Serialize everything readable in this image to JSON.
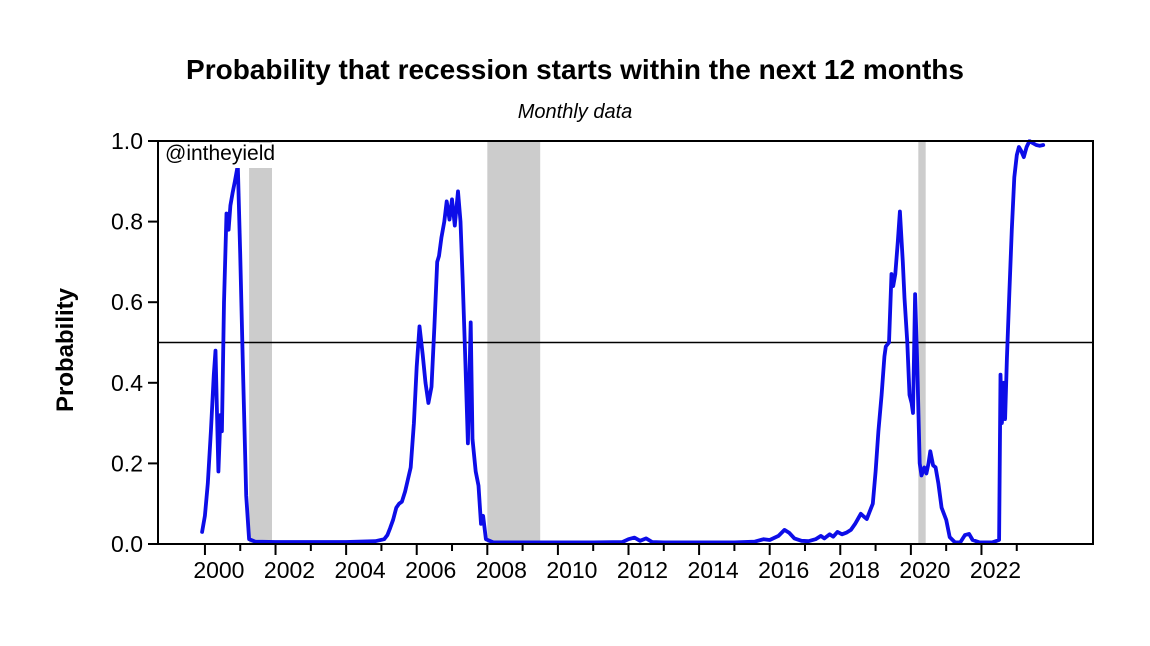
{
  "title": "Probability that recession starts within the next 12 months",
  "subtitle": "Monthly data",
  "watermark": "@intheyield",
  "chart_data": {
    "type": "line",
    "title": "Probability that recession starts within the next 12 months",
    "subtitle": "Monthly data",
    "xlabel": "",
    "ylabel": "Probability",
    "xlim": [
      1998.67,
      2025.16
    ],
    "ylim": [
      0.0,
      1.0
    ],
    "grid": false,
    "legend": "none",
    "reference_line": {
      "y": 0.5,
      "color": "#000000"
    },
    "shaded_bands": {
      "color": "#cccccc",
      "ranges": [
        [
          2001.25,
          2001.9
        ],
        [
          2008.0,
          2009.5
        ],
        [
          2020.21,
          2020.42
        ]
      ]
    },
    "y_ticks": [
      {
        "value": 0.0,
        "label": "0.0"
      },
      {
        "value": 0.2,
        "label": "0.2"
      },
      {
        "value": 0.4,
        "label": "0.4"
      },
      {
        "value": 0.6,
        "label": "0.6"
      },
      {
        "value": 0.8,
        "label": "0.8"
      },
      {
        "value": 1.0,
        "label": "1.0"
      }
    ],
    "x_ticks_major": [
      {
        "value": 2000,
        "label": "2000"
      },
      {
        "value": 2002,
        "label": "2002"
      },
      {
        "value": 2004,
        "label": "2004"
      },
      {
        "value": 2006,
        "label": "2006"
      },
      {
        "value": 2008,
        "label": "2008"
      },
      {
        "value": 2010,
        "label": "2010"
      },
      {
        "value": 2012,
        "label": "2012"
      },
      {
        "value": 2014,
        "label": "2014"
      },
      {
        "value": 2016,
        "label": "2016"
      },
      {
        "value": 2018,
        "label": "2018"
      },
      {
        "value": 2020,
        "label": "2020"
      },
      {
        "value": 2022,
        "label": "2022"
      }
    ],
    "x_ticks_minor": [
      2001,
      2003,
      2005,
      2007,
      2009,
      2011,
      2013,
      2015,
      2017,
      2019,
      2021,
      2023
    ],
    "series": {
      "color": "#0d0de8",
      "points": [
        [
          1999.92,
          0.03
        ],
        [
          2000.0,
          0.07
        ],
        [
          2000.08,
          0.15
        ],
        [
          2000.17,
          0.28
        ],
        [
          2000.25,
          0.42
        ],
        [
          2000.3,
          0.48
        ],
        [
          2000.38,
          0.18
        ],
        [
          2000.44,
          0.32
        ],
        [
          2000.48,
          0.28
        ],
        [
          2000.54,
          0.6
        ],
        [
          2000.61,
          0.82
        ],
        [
          2000.67,
          0.78
        ],
        [
          2000.72,
          0.84
        ],
        [
          2000.78,
          0.87
        ],
        [
          2000.85,
          0.9
        ],
        [
          2000.93,
          0.94
        ],
        [
          2001.0,
          0.72
        ],
        [
          2001.08,
          0.42
        ],
        [
          2001.17,
          0.12
        ],
        [
          2001.25,
          0.012
        ],
        [
          2001.42,
          0.006
        ],
        [
          2002.0,
          0.005
        ],
        [
          2003.0,
          0.005
        ],
        [
          2004.0,
          0.005
        ],
        [
          2004.83,
          0.007
        ],
        [
          2005.08,
          0.012
        ],
        [
          2005.17,
          0.022
        ],
        [
          2005.25,
          0.04
        ],
        [
          2005.33,
          0.06
        ],
        [
          2005.42,
          0.09
        ],
        [
          2005.5,
          0.1
        ],
        [
          2005.58,
          0.105
        ],
        [
          2005.67,
          0.13
        ],
        [
          2005.75,
          0.16
        ],
        [
          2005.83,
          0.19
        ],
        [
          2005.92,
          0.3
        ],
        [
          2006.0,
          0.44
        ],
        [
          2006.08,
          0.54
        ],
        [
          2006.17,
          0.47
        ],
        [
          2006.25,
          0.4
        ],
        [
          2006.33,
          0.35
        ],
        [
          2006.42,
          0.39
        ],
        [
          2006.5,
          0.54
        ],
        [
          2006.58,
          0.7
        ],
        [
          2006.63,
          0.715
        ],
        [
          2006.7,
          0.76
        ],
        [
          2006.78,
          0.8
        ],
        [
          2006.85,
          0.85
        ],
        [
          2006.93,
          0.805
        ],
        [
          2007.0,
          0.855
        ],
        [
          2007.08,
          0.79
        ],
        [
          2007.17,
          0.875
        ],
        [
          2007.24,
          0.8
        ],
        [
          2007.3,
          0.66
        ],
        [
          2007.38,
          0.45
        ],
        [
          2007.45,
          0.25
        ],
        [
          2007.53,
          0.55
        ],
        [
          2007.58,
          0.26
        ],
        [
          2007.67,
          0.18
        ],
        [
          2007.75,
          0.145
        ],
        [
          2007.82,
          0.05
        ],
        [
          2007.88,
          0.07
        ],
        [
          2007.96,
          0.012
        ],
        [
          2008.17,
          0.004
        ],
        [
          2009.0,
          0.004
        ],
        [
          2010.0,
          0.004
        ],
        [
          2011.0,
          0.004
        ],
        [
          2011.83,
          0.005
        ],
        [
          2012.0,
          0.012
        ],
        [
          2012.17,
          0.016
        ],
        [
          2012.33,
          0.008
        ],
        [
          2012.5,
          0.014
        ],
        [
          2012.67,
          0.005
        ],
        [
          2013.0,
          0.004
        ],
        [
          2014.0,
          0.004
        ],
        [
          2015.0,
          0.004
        ],
        [
          2015.58,
          0.006
        ],
        [
          2015.83,
          0.012
        ],
        [
          2016.0,
          0.01
        ],
        [
          2016.25,
          0.02
        ],
        [
          2016.42,
          0.035
        ],
        [
          2016.55,
          0.028
        ],
        [
          2016.7,
          0.014
        ],
        [
          2016.9,
          0.008
        ],
        [
          2017.1,
          0.007
        ],
        [
          2017.3,
          0.012
        ],
        [
          2017.45,
          0.02
        ],
        [
          2017.55,
          0.014
        ],
        [
          2017.7,
          0.024
        ],
        [
          2017.8,
          0.018
        ],
        [
          2017.92,
          0.03
        ],
        [
          2018.05,
          0.024
        ],
        [
          2018.17,
          0.028
        ],
        [
          2018.3,
          0.035
        ],
        [
          2018.42,
          0.05
        ],
        [
          2018.5,
          0.062
        ],
        [
          2018.58,
          0.075
        ],
        [
          2018.67,
          0.068
        ],
        [
          2018.75,
          0.062
        ],
        [
          2018.83,
          0.08
        ],
        [
          2018.92,
          0.1
        ],
        [
          2019.0,
          0.18
        ],
        [
          2019.08,
          0.28
        ],
        [
          2019.17,
          0.37
        ],
        [
          2019.25,
          0.465
        ],
        [
          2019.29,
          0.49
        ],
        [
          2019.38,
          0.5
        ],
        [
          2019.45,
          0.67
        ],
        [
          2019.5,
          0.64
        ],
        [
          2019.56,
          0.67
        ],
        [
          2019.63,
          0.75
        ],
        [
          2019.69,
          0.825
        ],
        [
          2019.77,
          0.7
        ],
        [
          2019.82,
          0.61
        ],
        [
          2019.9,
          0.5
        ],
        [
          2019.96,
          0.37
        ],
        [
          2020.02,
          0.35
        ],
        [
          2020.06,
          0.325
        ],
        [
          2020.12,
          0.62
        ],
        [
          2020.18,
          0.45
        ],
        [
          2020.25,
          0.2
        ],
        [
          2020.3,
          0.17
        ],
        [
          2020.38,
          0.19
        ],
        [
          2020.44,
          0.175
        ],
        [
          2020.5,
          0.2
        ],
        [
          2020.55,
          0.23
        ],
        [
          2020.63,
          0.195
        ],
        [
          2020.7,
          0.19
        ],
        [
          2020.78,
          0.15
        ],
        [
          2020.87,
          0.09
        ],
        [
          2021.0,
          0.06
        ],
        [
          2021.1,
          0.017
        ],
        [
          2021.25,
          0.004
        ],
        [
          2021.4,
          0.004
        ],
        [
          2021.53,
          0.022
        ],
        [
          2021.65,
          0.025
        ],
        [
          2021.75,
          0.01
        ],
        [
          2021.95,
          0.004
        ],
        [
          2022.3,
          0.004
        ],
        [
          2022.5,
          0.01
        ],
        [
          2022.54,
          0.42
        ],
        [
          2022.58,
          0.3
        ],
        [
          2022.63,
          0.4
        ],
        [
          2022.67,
          0.31
        ],
        [
          2022.72,
          0.46
        ],
        [
          2022.79,
          0.62
        ],
        [
          2022.86,
          0.78
        ],
        [
          2022.93,
          0.91
        ],
        [
          2023.0,
          0.965
        ],
        [
          2023.06,
          0.985
        ],
        [
          2023.13,
          0.975
        ],
        [
          2023.2,
          0.96
        ],
        [
          2023.28,
          0.985
        ],
        [
          2023.36,
          1.0
        ],
        [
          2023.45,
          0.995
        ],
        [
          2023.55,
          0.99
        ],
        [
          2023.65,
          0.988
        ],
        [
          2023.75,
          0.99
        ]
      ]
    }
  }
}
